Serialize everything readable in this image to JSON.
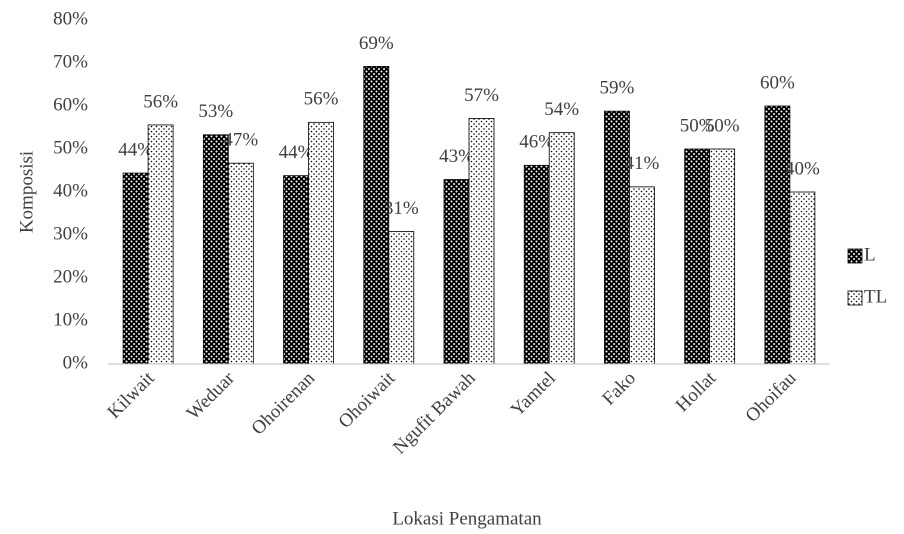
{
  "chart_data": {
    "type": "bar",
    "x_label": "Lokasi Pengamatan",
    "y_label": "Komposisi",
    "categories": [
      "Kilwait",
      "Weduar",
      "Ohoirenan",
      "Ohoiwait",
      "Ngufit Bawah",
      "Yamtel",
      "Fako",
      "Hollat",
      "Ohoifau"
    ],
    "series": [
      {
        "name": "L",
        "color": "#000000",
        "values": [
          44.4,
          53.3,
          43.8,
          69.2,
          42.9,
          46.2,
          58.8,
          50,
          60
        ],
        "value_labels": [
          "44%",
          "53%",
          "44%",
          "69%",
          "43%",
          "46%",
          "59%",
          "50%",
          "60%"
        ]
      },
      {
        "name": "TL",
        "color": "#ffffff",
        "values": [
          55.6,
          46.7,
          56.2,
          30.8,
          57.1,
          53.8,
          41.2,
          50,
          40
        ],
        "value_labels": [
          "56%",
          "47%",
          "56%",
          "31%",
          "57%",
          "54%",
          "41%",
          "50%",
          "40%"
        ]
      }
    ],
    "ylim": [
      0,
      80
    ],
    "yticks": [
      {
        "value": 0,
        "label": "0%"
      },
      {
        "value": 10,
        "label": "10%"
      },
      {
        "value": 20,
        "label": "20%"
      },
      {
        "value": 30,
        "label": "30%"
      },
      {
        "value": 40,
        "label": "40%"
      },
      {
        "value": 50,
        "label": "50%"
      },
      {
        "value": 60,
        "label": "60%"
      },
      {
        "value": 70,
        "label": "70%"
      },
      {
        "value": 80,
        "label": "80%"
      }
    ],
    "grid": false,
    "legend": "right"
  }
}
